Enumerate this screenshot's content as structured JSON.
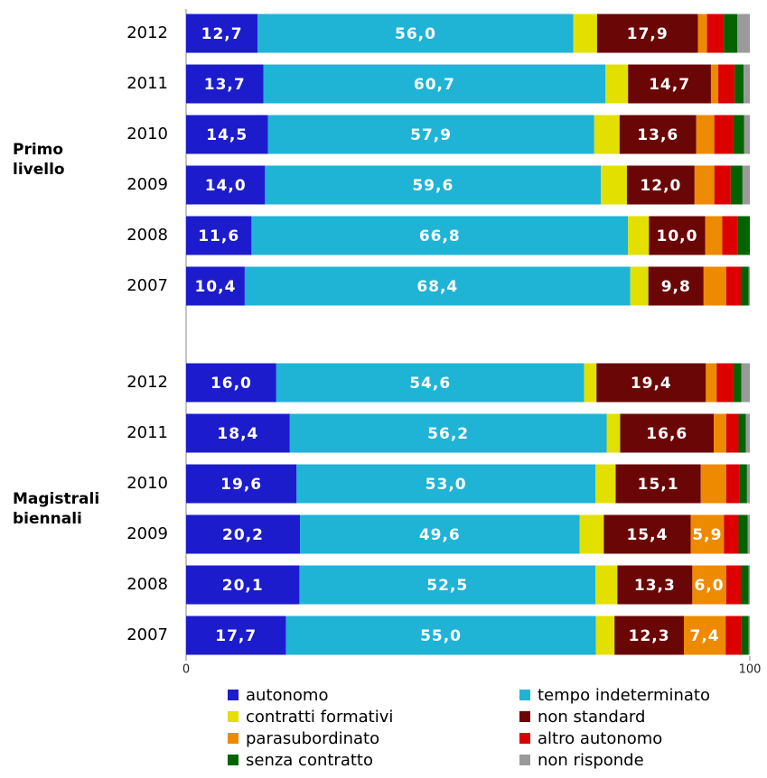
{
  "chart_data": {
    "type": "stacked_barh",
    "group_labels": [
      "Primo livello",
      "Magistrali biennali"
    ],
    "categories": [
      "2012",
      "2011",
      "2010",
      "2009",
      "2008",
      "2007",
      "2012",
      "2011",
      "2010",
      "2009",
      "2008",
      "2007"
    ],
    "xlim": [
      0,
      100
    ],
    "xticks": [
      0,
      100
    ],
    "series": [
      {
        "name": "autonomo",
        "color": "#1c1ccc",
        "values": [
          12.7,
          13.7,
          14.5,
          14.0,
          11.6,
          10.4,
          16.0,
          18.4,
          19.6,
          20.2,
          20.1,
          17.7
        ],
        "value_labels": [
          "12,7",
          "13,7",
          "14,5",
          "14,0",
          "11,6",
          "10,4",
          "16,0",
          "18,4",
          "19,6",
          "20,2",
          "20,1",
          "17,7"
        ]
      },
      {
        "name": "tempo indeterminato",
        "color": "#1fb3d6",
        "values": [
          56.0,
          60.7,
          57.9,
          59.6,
          66.8,
          68.4,
          54.6,
          56.2,
          53.0,
          49.6,
          52.5,
          55.0
        ],
        "value_labels": [
          "56,0",
          "60,7",
          "57,9",
          "59,6",
          "66,8",
          "68,4",
          "54,6",
          "56,2",
          "53,0",
          "49,6",
          "52,5",
          "55,0"
        ]
      },
      {
        "name": "contratti formativi",
        "color": "#e3e000",
        "values": [
          4.2,
          4.0,
          4.5,
          4.6,
          3.7,
          3.2,
          2.2,
          2.4,
          3.6,
          4.3,
          3.9,
          3.3
        ]
      },
      {
        "name": "non standard",
        "color": "#6a0606",
        "values": [
          17.9,
          14.7,
          13.6,
          12.0,
          10.0,
          9.8,
          19.4,
          16.6,
          15.1,
          15.4,
          13.3,
          12.3
        ],
        "value_labels": [
          "17,9",
          "14,7",
          "13,6",
          "12,0",
          "10,0",
          "9,8",
          "19,4",
          "16,6",
          "15,1",
          "15,4",
          "13,3",
          "12,3"
        ]
      },
      {
        "name": "parasubordinato",
        "color": "#ee8a00",
        "values": [
          1.6,
          1.3,
          3.2,
          3.5,
          3.0,
          4.0,
          1.9,
          2.2,
          4.5,
          5.9,
          6.0,
          7.4
        ],
        "value_labels": [
          null,
          null,
          null,
          null,
          null,
          null,
          null,
          null,
          null,
          "5,9",
          "6,0",
          "7,4"
        ]
      },
      {
        "name": "altro autonomo",
        "color": "#dd0000",
        "values": [
          3.0,
          2.9,
          3.4,
          2.9,
          2.7,
          2.6,
          3.0,
          2.2,
          2.3,
          2.6,
          2.6,
          2.8
        ]
      },
      {
        "name": "senza contratto",
        "color": "#006400",
        "values": [
          2.4,
          1.6,
          1.9,
          2.1,
          2.2,
          1.4,
          1.4,
          1.3,
          1.4,
          1.6,
          1.4,
          1.3
        ]
      },
      {
        "name": "non risponde",
        "color": "#9a9a9a",
        "values": [
          2.2,
          1.1,
          1.0,
          1.3,
          0,
          0.2,
          1.5,
          0.7,
          0.5,
          0.4,
          0.2,
          0.2
        ]
      }
    ]
  }
}
